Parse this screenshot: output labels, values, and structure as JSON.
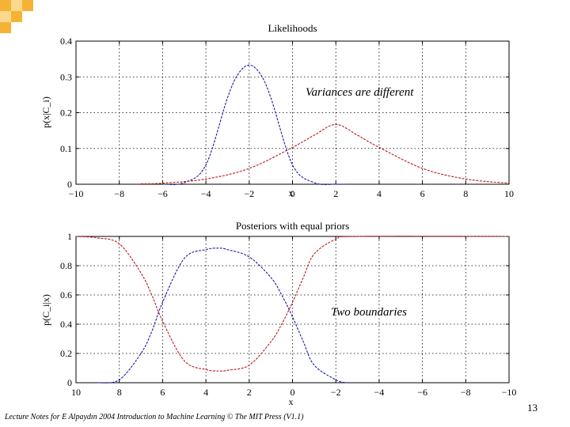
{
  "slide": {
    "accent_color": "#f5b335",
    "accent_light": "#fbd88e",
    "footer": "Lecture Notes for E Alpaydın 2004 Introduction to Machine Learning © The MIT Press (V1.1)",
    "page_number": "13"
  },
  "chart_data": [
    {
      "type": "line",
      "title": "Likelihoods",
      "xlabel": "x",
      "ylabel": "p(x|C_i)",
      "xlim": [
        -10,
        10
      ],
      "ylim": [
        0,
        0.4
      ],
      "xticks": [
        -10,
        -8,
        -6,
        -4,
        -2,
        0,
        2,
        4,
        6,
        8,
        10
      ],
      "yticks": [
        0,
        0.1,
        0.2,
        0.3,
        0.4
      ],
      "grid": true,
      "annotation": "Variances are different",
      "series": [
        {
          "color": "#1a1aa8",
          "dash": "dashed",
          "x": [
            -6,
            -5,
            -4,
            -3,
            -2.5,
            -2,
            -1.5,
            -1,
            0,
            1,
            2,
            2.5
          ],
          "values": [
            0.0001,
            0.0044,
            0.054,
            0.242,
            0.309,
            0.333,
            0.309,
            0.242,
            0.054,
            0.0044,
            0.0001,
            1e-05
          ]
        },
        {
          "color": "#b81c1c",
          "dash": "dashed",
          "x": [
            -7,
            -6,
            -4,
            -2,
            0,
            1,
            2,
            3,
            4,
            6,
            8,
            10
          ],
          "values": [
            0.0013,
            0.0029,
            0.0145,
            0.0442,
            0.103,
            0.137,
            0.167,
            0.137,
            0.103,
            0.0442,
            0.0145,
            0.0029
          ]
        }
      ]
    },
    {
      "type": "line",
      "title": "Posteriors with equal priors",
      "xlabel": "x",
      "ylabel": "p(C_i|x)",
      "xlim": [
        10,
        -10
      ],
      "ylim": [
        0,
        1
      ],
      "xticks": [
        10,
        8,
        6,
        4,
        2,
        0,
        -2,
        -4,
        -6,
        -8,
        -10
      ],
      "yticks": [
        0,
        0.2,
        0.4,
        0.6,
        0.8,
        1
      ],
      "grid": true,
      "annotation": "Two boundaries",
      "series": [
        {
          "color": "#1a1aa8",
          "dash": "dashed",
          "x": [
            9,
            8,
            7,
            6.5,
            6,
            5,
            4,
            3.4,
            3,
            2,
            1,
            0.5,
            0,
            -0.5,
            -1,
            -2,
            -2.5
          ],
          "values": [
            0.0,
            0.02,
            0.2,
            0.35,
            0.55,
            0.85,
            0.91,
            0.92,
            0.91,
            0.86,
            0.72,
            0.6,
            0.45,
            0.28,
            0.12,
            0.02,
            0.0
          ]
        },
        {
          "color": "#b81c1c",
          "dash": "dashed",
          "x": [
            10,
            9,
            8,
            7,
            6.5,
            6,
            5,
            4,
            3.4,
            3,
            2,
            1,
            0.5,
            0,
            -0.5,
            -1,
            -2,
            -3,
            -10
          ],
          "values": [
            1.0,
            0.99,
            0.95,
            0.75,
            0.6,
            0.42,
            0.15,
            0.09,
            0.08,
            0.085,
            0.12,
            0.28,
            0.4,
            0.55,
            0.72,
            0.88,
            0.98,
            1.0,
            1.0
          ]
        }
      ]
    }
  ]
}
